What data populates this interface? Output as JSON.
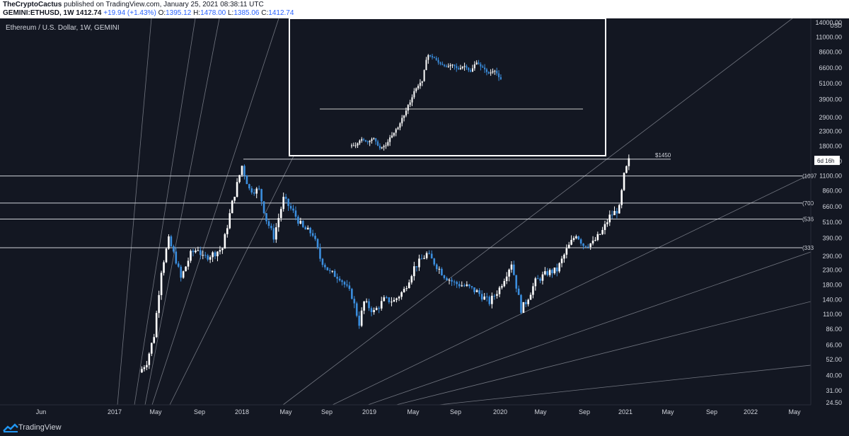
{
  "header": {
    "author": "TheCryptoCactus",
    "published_text": "published on TradingView.com, January 25, 2021 08:38:11 UTC",
    "symbol": "GEMINI:ETHUSD, 1W",
    "price": "1412.74",
    "change": "+19.94 (+1.43%)",
    "o_label": "O:",
    "o_value": "1395.12",
    "h_label": "H:",
    "h_value": "1478.00",
    "l_label": "L:",
    "l_value": "1385.06",
    "c_label": "C:",
    "c_value": "1412.74"
  },
  "chart_title": "Ethereum / U.S. Dollar, 1W, GEMINI",
  "footer": {
    "brand": "TradingView"
  },
  "colors": {
    "background": "#131722",
    "up": "#ffffff",
    "down": "#3b8ede",
    "line": "#c8c8c8",
    "axis_text": "#d1d4dc"
  },
  "chart_data": {
    "type": "candlestick",
    "scale": "log",
    "ylabel": "USD",
    "y_ticks": [
      "14000.00",
      "11000.00",
      "8600.00",
      "6600.00",
      "5100.00",
      "3900.00",
      "2900.00",
      "2300.00",
      "1800.00",
      "1400.00",
      "1100.00",
      "860.00",
      "660.00",
      "510.00",
      "390.00",
      "290.00",
      "230.00",
      "180.00",
      "140.00",
      "110.00",
      "86.00",
      "66.00",
      "52.00",
      "40.00",
      "31.00",
      "24.50"
    ],
    "x_ticks": [
      "Jun",
      "2017",
      "May",
      "Sep",
      "2018",
      "May",
      "Sep",
      "2019",
      "May",
      "Sep",
      "2020",
      "May",
      "Sep",
      "2021",
      "May",
      "Sep",
      "2022",
      "May"
    ],
    "horizontal_levels": [
      {
        "value": 1450,
        "label": "$1450"
      },
      {
        "value": 1097,
        "label": "(1097"
      },
      {
        "value": 700,
        "label": "(700"
      },
      {
        "value": 536,
        "label": "(536"
      },
      {
        "value": 333,
        "label": "(333"
      }
    ],
    "countdown_label": "6d 16h",
    "weekly_closes": [
      {
        "date": "2017-03-20",
        "close": 42
      },
      {
        "date": "2017-04-10",
        "close": 50
      },
      {
        "date": "2017-05-01",
        "close": 78
      },
      {
        "date": "2017-05-22",
        "close": 230
      },
      {
        "date": "2017-06-12",
        "close": 380
      },
      {
        "date": "2017-07-03",
        "close": 270
      },
      {
        "date": "2017-07-17",
        "close": 200
      },
      {
        "date": "2017-08-14",
        "close": 300
      },
      {
        "date": "2017-09-04",
        "close": 330
      },
      {
        "date": "2017-09-18",
        "close": 280
      },
      {
        "date": "2017-10-16",
        "close": 300
      },
      {
        "date": "2017-11-13",
        "close": 330
      },
      {
        "date": "2017-12-11",
        "close": 700
      },
      {
        "date": "2018-01-08",
        "close": 1300
      },
      {
        "date": "2018-01-29",
        "close": 880
      },
      {
        "date": "2018-02-26",
        "close": 860
      },
      {
        "date": "2018-03-19",
        "close": 530
      },
      {
        "date": "2018-04-09",
        "close": 400
      },
      {
        "date": "2018-05-07",
        "close": 750
      },
      {
        "date": "2018-06-04",
        "close": 600
      },
      {
        "date": "2018-07-02",
        "close": 460
      },
      {
        "date": "2018-07-30",
        "close": 420
      },
      {
        "date": "2018-08-20",
        "close": 280
      },
      {
        "date": "2018-09-17",
        "close": 220
      },
      {
        "date": "2018-10-15",
        "close": 205
      },
      {
        "date": "2018-11-19",
        "close": 150
      },
      {
        "date": "2018-12-10",
        "close": 95
      },
      {
        "date": "2018-12-24",
        "close": 135
      },
      {
        "date": "2019-01-21",
        "close": 115
      },
      {
        "date": "2019-02-18",
        "close": 140
      },
      {
        "date": "2019-03-18",
        "close": 138
      },
      {
        "date": "2019-04-15",
        "close": 165
      },
      {
        "date": "2019-05-13",
        "close": 240
      },
      {
        "date": "2019-06-17",
        "close": 300
      },
      {
        "date": "2019-07-08",
        "close": 260
      },
      {
        "date": "2019-08-05",
        "close": 210
      },
      {
        "date": "2019-09-02",
        "close": 185
      },
      {
        "date": "2019-10-07",
        "close": 175
      },
      {
        "date": "2019-11-04",
        "close": 160
      },
      {
        "date": "2019-12-09",
        "close": 135
      },
      {
        "date": "2020-01-06",
        "close": 170
      },
      {
        "date": "2020-02-10",
        "close": 260
      },
      {
        "date": "2020-03-09",
        "close": 120
      },
      {
        "date": "2020-03-23",
        "close": 135
      },
      {
        "date": "2020-04-20",
        "close": 190
      },
      {
        "date": "2020-05-25",
        "close": 220
      },
      {
        "date": "2020-06-22",
        "close": 230
      },
      {
        "date": "2020-07-20",
        "close": 320
      },
      {
        "date": "2020-08-17",
        "close": 420
      },
      {
        "date": "2020-09-07",
        "close": 350
      },
      {
        "date": "2020-10-05",
        "close": 360
      },
      {
        "date": "2020-11-02",
        "close": 440
      },
      {
        "date": "2020-11-23",
        "close": 560
      },
      {
        "date": "2020-12-21",
        "close": 640
      },
      {
        "date": "2021-01-04",
        "close": 1100
      },
      {
        "date": "2021-01-18",
        "close": 1412.74
      }
    ],
    "inset_panel": {
      "level_label": "",
      "closes": [
        700,
        820,
        760,
        840,
        650,
        700,
        900,
        1100,
        1500,
        2100,
        3000,
        3600,
        7000,
        6500,
        5600,
        5200,
        5500,
        4900,
        5300,
        4600,
        5800,
        5100,
        4400,
        4700,
        3800
      ]
    }
  }
}
